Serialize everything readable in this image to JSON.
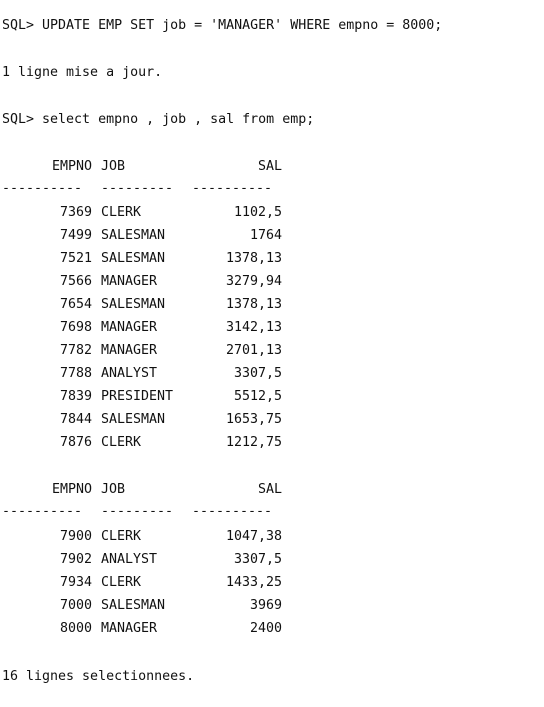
{
  "console": {
    "update_prompt": "SQL> UPDATE EMP SET job = 'MANAGER' WHERE empno = 8000;",
    "update_result": "1 ligne mise a jour.",
    "select_prompt": "SQL> select empno , job , sal from emp;",
    "footer": "16 lignes selectionnees."
  },
  "table": {
    "headers": {
      "empno": "EMPNO",
      "job": "JOB",
      "sal": "SAL"
    },
    "separators": {
      "empno": "----------",
      "job": "---------",
      "sal": "----------"
    },
    "page1": [
      {
        "empno": "7369",
        "job": "CLERK",
        "sal": "1102,5"
      },
      {
        "empno": "7499",
        "job": "SALESMAN",
        "sal": "1764"
      },
      {
        "empno": "7521",
        "job": "SALESMAN",
        "sal": "1378,13"
      },
      {
        "empno": "7566",
        "job": "MANAGER",
        "sal": "3279,94"
      },
      {
        "empno": "7654",
        "job": "SALESMAN",
        "sal": "1378,13"
      },
      {
        "empno": "7698",
        "job": "MANAGER",
        "sal": "3142,13"
      },
      {
        "empno": "7782",
        "job": "MANAGER",
        "sal": "2701,13"
      },
      {
        "empno": "7788",
        "job": "ANALYST",
        "sal": "3307,5"
      },
      {
        "empno": "7839",
        "job": "PRESIDENT",
        "sal": "5512,5"
      },
      {
        "empno": "7844",
        "job": "SALESMAN",
        "sal": "1653,75"
      },
      {
        "empno": "7876",
        "job": "CLERK",
        "sal": "1212,75"
      }
    ],
    "page2": [
      {
        "empno": "7900",
        "job": "CLERK",
        "sal": "1047,38"
      },
      {
        "empno": "7902",
        "job": "ANALYST",
        "sal": "3307,5"
      },
      {
        "empno": "7934",
        "job": "CLERK",
        "sal": "1433,25"
      },
      {
        "empno": "7000",
        "job": "SALESMAN",
        "sal": "3969"
      },
      {
        "empno": "8000",
        "job": "MANAGER",
        "sal": "2400"
      }
    ]
  }
}
